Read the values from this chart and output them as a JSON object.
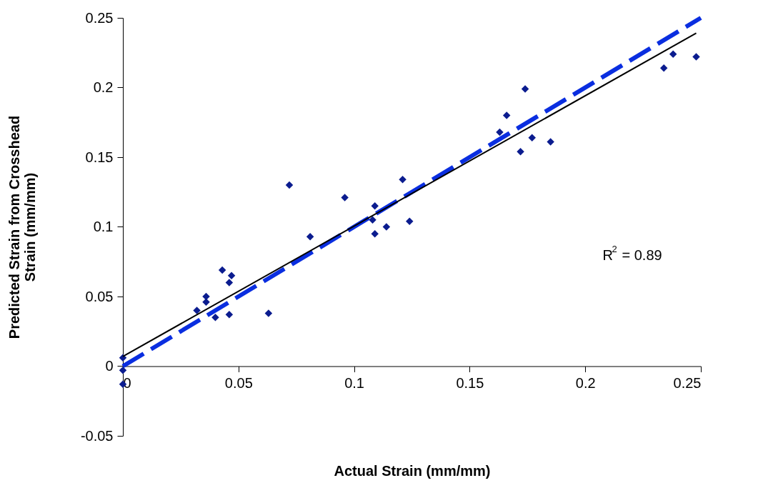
{
  "chart_data": {
    "type": "scatter",
    "xlabel": "Actual Strain (mm/mm)",
    "ylabel": "Predicted Strain from Crosshead Strain (mm/mm)",
    "xlim": [
      0,
      0.25
    ],
    "xticks": [
      0,
      0.05,
      0.1,
      0.15,
      0.2,
      0.25
    ],
    "ylim": [
      -0.05,
      0.25
    ],
    "yticks": [
      -0.05,
      0,
      0.05,
      0.1,
      0.15,
      0.2,
      0.25
    ],
    "marker": "diamond",
    "annotations": [
      "R$^{2}$ = 0.89"
    ],
    "series": [
      {
        "color": "#0b1c8f",
        "x": [
          0,
          0,
          0,
          0.032,
          0.036,
          0.036,
          0.04,
          0.043,
          0.046,
          0.047,
          0.046,
          0.063,
          0.072,
          0.081,
          0.096,
          0.109,
          0.108,
          0.109,
          0.114,
          0.121,
          0.124,
          0.163,
          0.166,
          0.172,
          0.174,
          0.177,
          0.185,
          0.234,
          0.238,
          0.248
        ],
        "values": [
          0.006,
          -0.003,
          -0.013,
          0.04,
          0.05,
          0.046,
          0.035,
          0.069,
          0.06,
          0.065,
          0.037,
          0.038,
          0.13,
          0.093,
          0.121,
          0.115,
          0.105,
          0.095,
          0.1,
          0.134,
          0.104,
          0.168,
          0.18,
          0.154,
          0.199,
          0.164,
          0.161,
          0.214,
          0.224,
          0.222
        ]
      },
      {
        "type": "line",
        "color": "#0a2ee0",
        "line_style": "dashed",
        "marker": "none",
        "x": [
          0,
          0.25
        ],
        "values": [
          0,
          0.25
        ]
      },
      {
        "type": "line",
        "color": "#000000",
        "line_style": "solid",
        "marker": "none",
        "x": [
          0,
          0.248
        ],
        "values": [
          0.007,
          0.239
        ]
      }
    ]
  }
}
